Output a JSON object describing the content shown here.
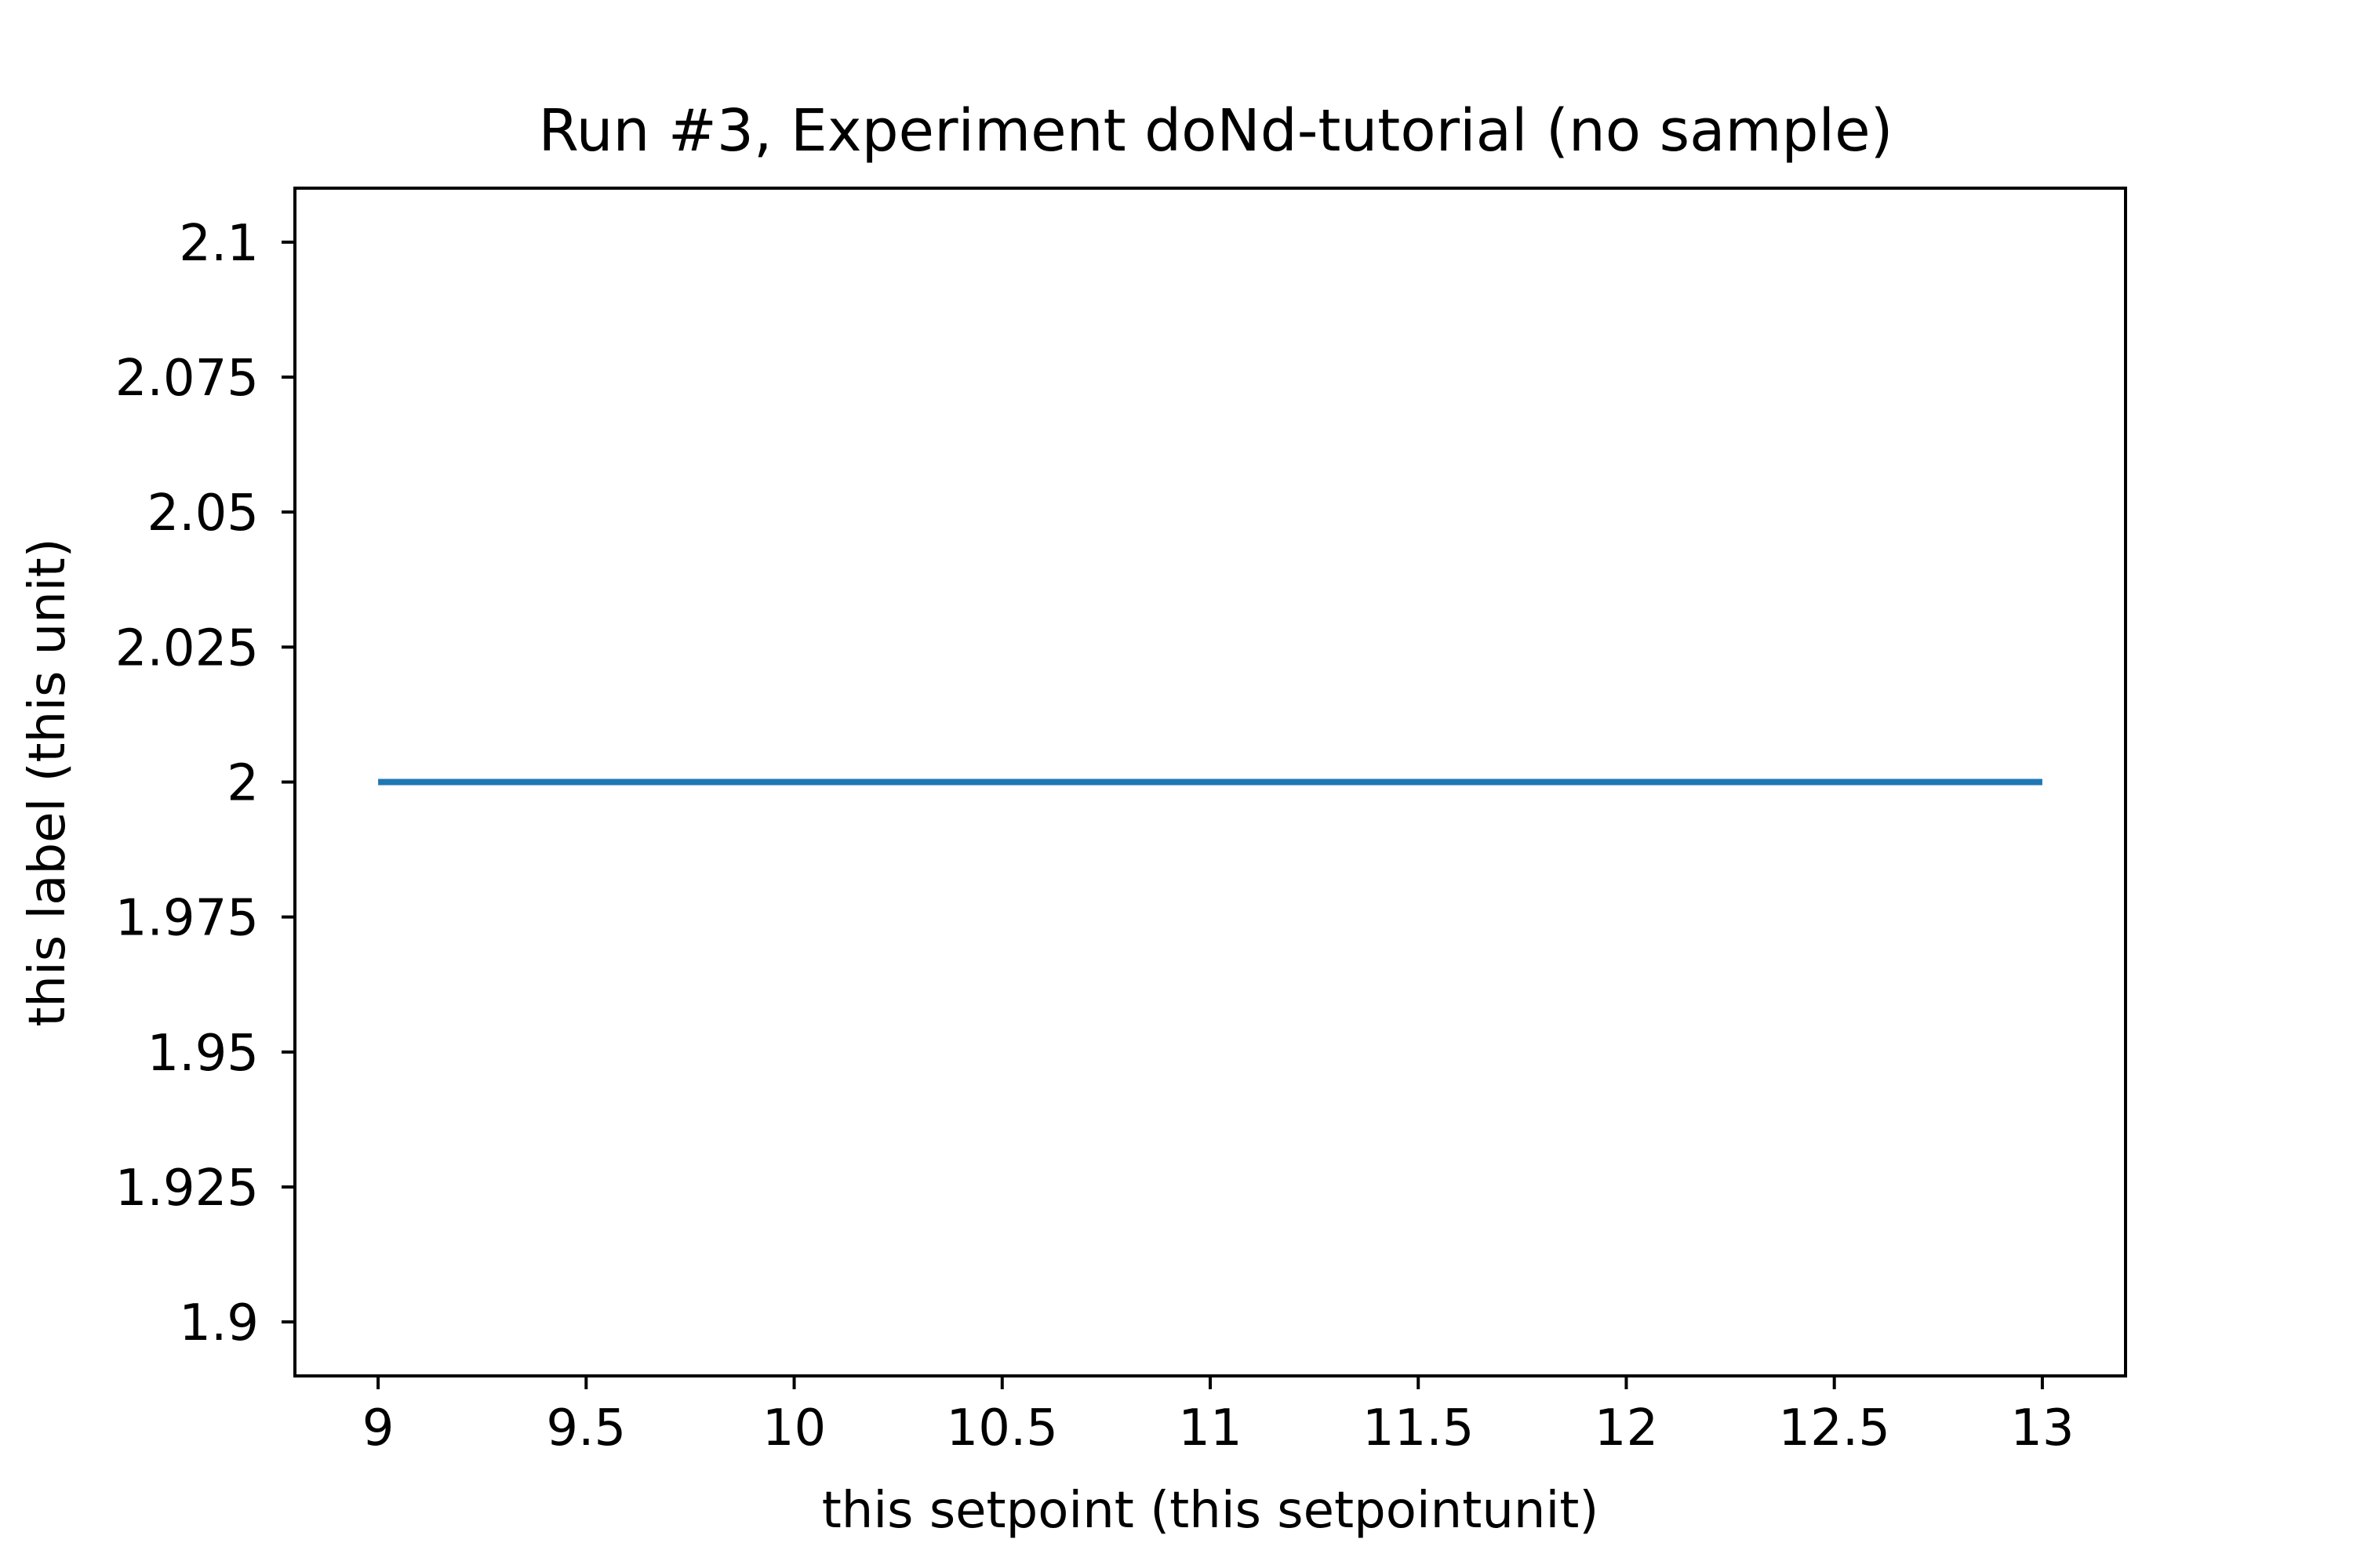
{
  "chart_data": {
    "type": "line",
    "title": "Run #3, Experiment doNd-tutorial (no sample)",
    "xlabel": "this setpoint (this setpointunit)",
    "ylabel": "this label (this unit)",
    "xlim": [
      8.8,
      13.2
    ],
    "ylim": [
      1.89,
      2.11
    ],
    "x_ticks": [
      9,
      9.5,
      10,
      10.5,
      11,
      11.5,
      12,
      12.5,
      13
    ],
    "x_tick_labels": [
      "9",
      "9.5",
      "10",
      "10.5",
      "11",
      "11.5",
      "12",
      "12.5",
      "13"
    ],
    "y_ticks": [
      1.9,
      1.925,
      1.95,
      1.975,
      2.0,
      2.025,
      2.05,
      2.075,
      2.1
    ],
    "y_tick_labels": [
      "1.9",
      "1.925",
      "1.95",
      "1.975",
      "2",
      "2.025",
      "2.05",
      "2.075",
      "2.1"
    ],
    "grid": false,
    "series": [
      {
        "color": "#1f77b4",
        "x": [
          9,
          13
        ],
        "y": [
          2.0,
          2.0
        ]
      }
    ]
  }
}
